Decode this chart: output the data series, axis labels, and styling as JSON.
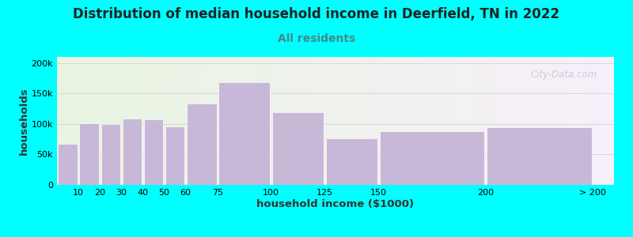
{
  "title": "Distribution of median household income in Deerfield, TN in 2022",
  "subtitle": "All residents",
  "xlabel": "household income ($1000)",
  "ylabel": "households",
  "background_color": "#00ffff",
  "bar_color": "#c8b8d8",
  "bar_edge_color": "#ffffff",
  "categories": [
    "10",
    "20",
    "30",
    "40",
    "50",
    "60",
    "75",
    "100",
    "125",
    "150",
    "200",
    "> 200"
  ],
  "left_edges": [
    0,
    10,
    20,
    30,
    40,
    50,
    60,
    75,
    100,
    125,
    150,
    200
  ],
  "bar_widths": [
    10,
    10,
    10,
    10,
    10,
    10,
    15,
    25,
    25,
    25,
    50,
    50
  ],
  "tick_positions": [
    10,
    20,
    30,
    40,
    50,
    60,
    75,
    100,
    125,
    150,
    200,
    250
  ],
  "values": [
    67000,
    101000,
    100000,
    109000,
    107000,
    96000,
    133000,
    168000,
    119000,
    77000,
    88000,
    95000
  ],
  "xlim": [
    0,
    260
  ],
  "ylim": [
    0,
    210000
  ],
  "yticks": [
    0,
    50000,
    100000,
    150000,
    200000
  ],
  "ytick_labels": [
    "0",
    "50k",
    "100k",
    "150k",
    "200k"
  ],
  "watermark": "City-Data.com",
  "title_fontsize": 12,
  "subtitle_fontsize": 10,
  "axis_label_fontsize": 9.5,
  "tick_fontsize": 8,
  "subtitle_color": "#448888",
  "title_color": "#222222"
}
